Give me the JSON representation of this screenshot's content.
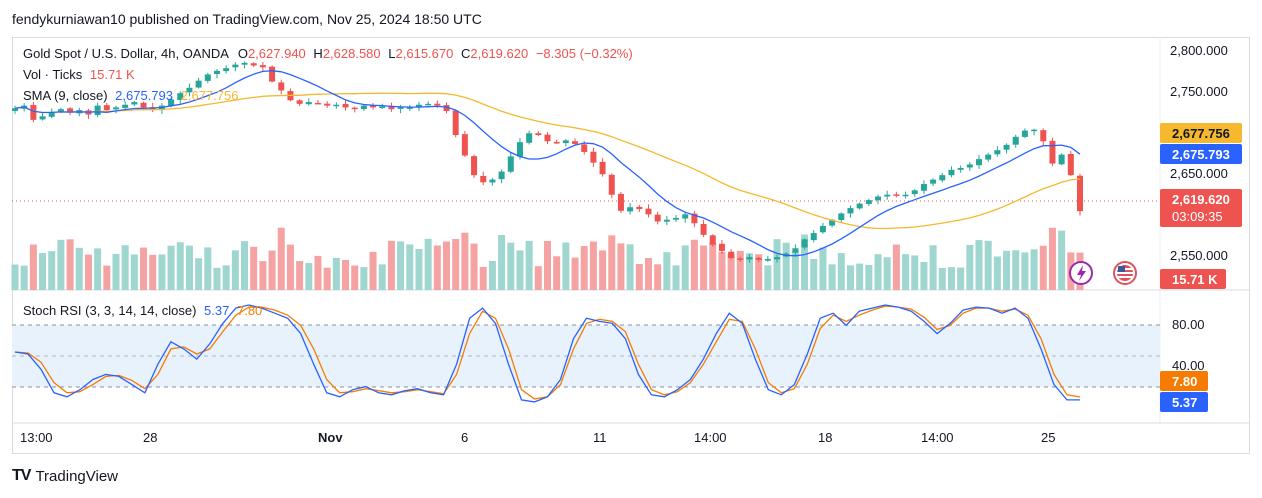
{
  "header": {
    "published": "fendykurniawan10 published on TradingView.com, Nov 25, 2024 18:50 UTC"
  },
  "legend": {
    "symbol": "Gold Spot / U.S. Dollar, 4h, OANDA",
    "o_label": "O",
    "o": "2,627.940",
    "h_label": "H",
    "h": "2,628.580",
    "l_label": "L",
    "l": "2,615.670",
    "c_label": "C",
    "c": "2,619.620",
    "change": "−8.305 (−0.32%)",
    "vol_label": "Vol · Ticks",
    "vol": "15.71 K",
    "sma_label": "SMA (9, close)",
    "sma_fast": "2,675.793",
    "sma_slow": "2,677.756",
    "stoch_label": "Stoch RSI (3, 3, 14, 14, close)",
    "stoch_k": "5.37",
    "stoch_d": "7.80"
  },
  "colors": {
    "up": "#26a69a",
    "down": "#ef5350",
    "vol_up": "#9fd6cf",
    "vol_down": "#f5a3a2",
    "sma_fast": "#2962ff",
    "sma_slow": "#f5b82e",
    "stoch_k": "#2962ff",
    "stoch_d": "#f57c00",
    "band": "#e3f0fb"
  },
  "price_axis": {
    "ticks": [
      "2,800.000",
      "2,750.000",
      "2,650.000",
      "2,550.000"
    ]
  },
  "stoch_axis": {
    "ticks": [
      "80.00",
      "40.00"
    ]
  },
  "time_axis": {
    "labels": [
      "13:00",
      "28",
      "Nov",
      "6",
      "11",
      "14:00",
      "18",
      "14:00",
      "25"
    ]
  },
  "badges": {
    "sma_slow": "2,677.756",
    "sma_fast": "2,675.793",
    "close": "2,619.620",
    "countdown": "03:09:35",
    "vol": "15.71 K",
    "stoch_d": "7.80",
    "stoch_k": "5.37"
  },
  "icons": [
    "lightning-icon",
    "us-flag-icon"
  ],
  "footer": {
    "brand": "TradingView"
  },
  "chart_data": [
    {
      "type": "candlestick",
      "title": "Gold Spot / U.S. Dollar, 4h, OANDA",
      "ylim": [
        2530,
        2815
      ],
      "x_labels": [
        "13:00",
        "28",
        "Nov",
        "6",
        "11",
        "14:00",
        "18",
        "14:00",
        "25"
      ],
      "close_path": [
        2735,
        2738,
        2722,
        2726,
        2731,
        2734,
        2730,
        2733,
        2728,
        2738,
        2733,
        2736,
        2739,
        2742,
        2736,
        2733,
        2738,
        2745,
        2752,
        2758,
        2766,
        2773,
        2777,
        2780,
        2784,
        2786,
        2783,
        2781,
        2765,
        2755,
        2744,
        2740,
        2742,
        2741,
        2738,
        2739,
        2736,
        2735,
        2738,
        2736,
        2737,
        2734,
        2736,
        2736,
        2739,
        2740,
        2738,
        2732,
        2705,
        2682,
        2660,
        2652,
        2655,
        2664,
        2681,
        2697,
        2707,
        2705,
        2698,
        2697,
        2699,
        2695,
        2686,
        2674,
        2661,
        2638,
        2620,
        2624,
        2622,
        2616,
        2608,
        2610,
        2612,
        2616,
        2606,
        2593,
        2582,
        2575,
        2567,
        2566,
        2568,
        2565,
        2566,
        2568,
        2572,
        2578,
        2588,
        2595,
        2603,
        2610,
        2617,
        2623,
        2628,
        2632,
        2636,
        2638,
        2637,
        2638,
        2643,
        2650,
        2655,
        2660,
        2666,
        2668,
        2672,
        2678,
        2683,
        2688,
        2694,
        2703,
        2710,
        2711,
        2698,
        2673,
        2683,
        2660,
        2619.62
      ],
      "sma_fast_last": 2675.793,
      "sma_slow_last": 2677.756,
      "last": {
        "open": 2627.94,
        "high": 2628.58,
        "low": 2615.67,
        "close": 2619.62,
        "change": -8.305,
        "change_pct": -0.32
      }
    },
    {
      "type": "bar",
      "title": "Vol · Ticks",
      "last_value": 15.71,
      "unit": "K"
    },
    {
      "type": "line",
      "title": "Stoch RSI (3, 3, 14, 14, close)",
      "ylim": [
        0,
        100
      ],
      "bands": [
        20,
        50,
        80
      ],
      "series": [
        {
          "name": "K",
          "values": [
            52,
            50,
            35,
            12,
            8,
            15,
            25,
            30,
            28,
            20,
            12,
            40,
            62,
            55,
            45,
            60,
            80,
            95,
            98,
            95,
            90,
            85,
            70,
            40,
            12,
            8,
            15,
            18,
            12,
            10,
            14,
            16,
            12,
            10,
            40,
            85,
            95,
            80,
            40,
            5,
            3,
            8,
            25,
            65,
            85,
            82,
            80,
            65,
            30,
            10,
            8,
            15,
            25,
            45,
            70,
            90,
            80,
            45,
            15,
            10,
            20,
            50,
            85,
            90,
            78,
            92,
            95,
            98,
            96,
            92,
            82,
            70,
            80,
            93,
            96,
            95,
            90,
            95,
            85,
            55,
            20,
            5,
            5
          ],
          "last": 5.37
        },
        {
          "name": "D",
          "values": [
            52,
            51,
            42,
            22,
            12,
            13,
            20,
            28,
            29,
            24,
            16,
            30,
            55,
            57,
            50,
            55,
            72,
            88,
            96,
            96,
            93,
            88,
            78,
            55,
            25,
            12,
            13,
            16,
            14,
            12,
            13,
            15,
            13,
            11,
            30,
            70,
            92,
            85,
            55,
            15,
            6,
            8,
            20,
            55,
            80,
            84,
            82,
            72,
            40,
            15,
            10,
            13,
            22,
            40,
            62,
            84,
            82,
            55,
            22,
            12,
            16,
            40,
            75,
            88,
            82,
            88,
            93,
            97,
            96,
            94,
            86,
            74,
            78,
            90,
            95,
            95,
            92,
            94,
            88,
            65,
            30,
            10,
            7.8
          ],
          "last": 7.8
        }
      ]
    }
  ]
}
